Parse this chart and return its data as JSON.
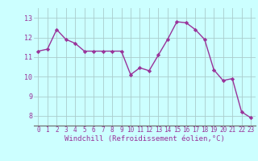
{
  "x": [
    0,
    1,
    2,
    3,
    4,
    5,
    6,
    7,
    8,
    9,
    10,
    11,
    12,
    13,
    14,
    15,
    16,
    17,
    18,
    19,
    20,
    21,
    22,
    23
  ],
  "y": [
    11.3,
    11.4,
    12.4,
    11.9,
    11.7,
    11.3,
    11.3,
    11.3,
    11.3,
    11.3,
    10.1,
    10.45,
    10.3,
    11.1,
    11.9,
    12.8,
    12.75,
    12.4,
    11.9,
    10.35,
    9.8,
    9.9,
    8.2,
    7.9
  ],
  "line_color": "#993399",
  "marker": "D",
  "marker_size": 2.2,
  "line_width": 1.0,
  "bg_color": "#ccffff",
  "grid_color": "#aacccc",
  "xlabel": "Windchill (Refroidissement éolien,°C)",
  "xlabel_color": "#993399",
  "tick_color": "#993399",
  "xlim": [
    -0.5,
    23.5
  ],
  "ylim": [
    7.5,
    13.5
  ],
  "yticks": [
    8,
    9,
    10,
    11,
    12,
    13
  ],
  "xticks": [
    0,
    1,
    2,
    3,
    4,
    5,
    6,
    7,
    8,
    9,
    10,
    11,
    12,
    13,
    14,
    15,
    16,
    17,
    18,
    19,
    20,
    21,
    22,
    23
  ],
  "tick_fontsize": 5.5,
  "ylabel_fontsize": 6.0,
  "xlabel_fontsize": 6.5
}
